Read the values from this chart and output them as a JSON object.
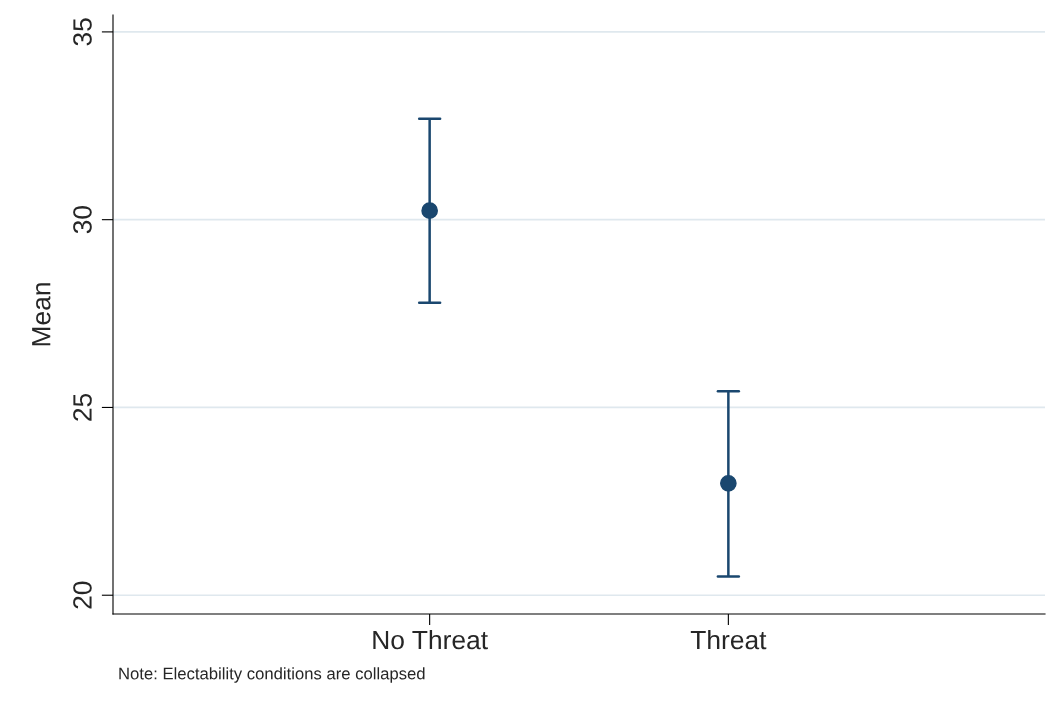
{
  "chart_data": {
    "type": "scatter",
    "ylabel": "Mean",
    "categories": [
      "No Threat",
      "Threat"
    ],
    "values": [
      30.24,
      22.98
    ],
    "errors": [
      [
        27.79,
        32.69
      ],
      [
        20.5,
        25.43
      ]
    ],
    "color": "#1a476f",
    "marker": "circle",
    "ylim": [
      19.5,
      35.45
    ],
    "yticks": [
      20,
      25,
      30,
      35
    ],
    "grid": "y",
    "legend": false,
    "annotations": [
      "Note: Electability conditions are collapsed"
    ]
  }
}
